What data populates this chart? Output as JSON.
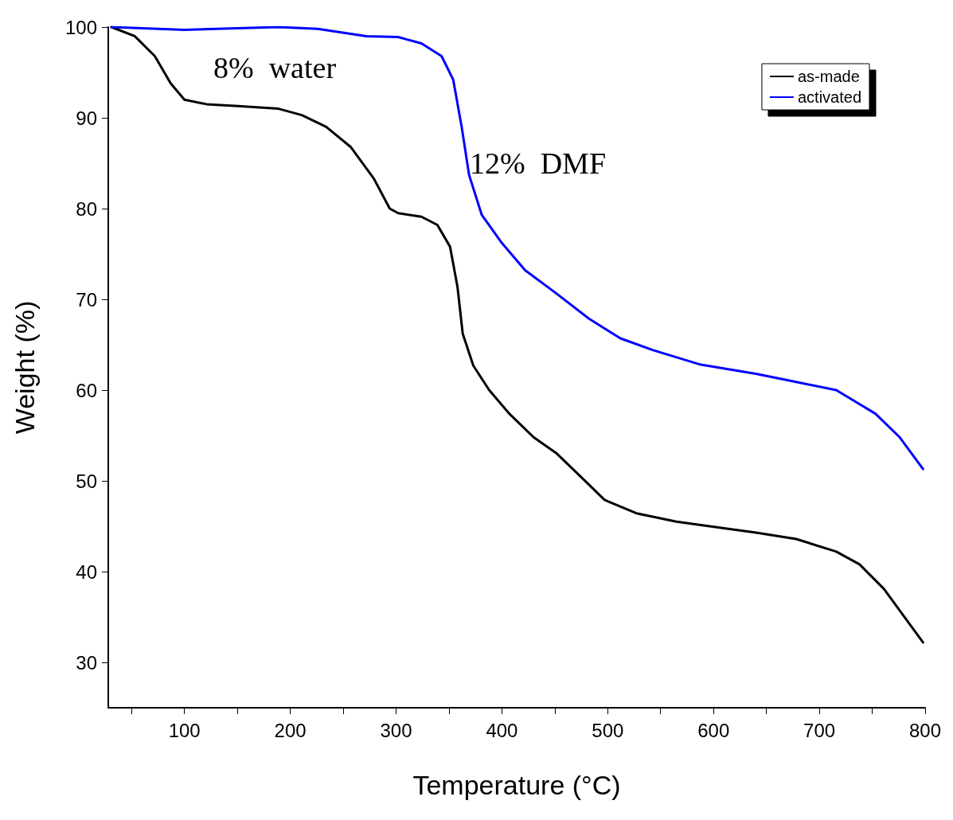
{
  "chart_data": {
    "type": "line",
    "xlabel": "Temperature (°C)",
    "ylabel": "Weight (%)",
    "xlim": [
      28,
      800
    ],
    "ylim": [
      25,
      100
    ],
    "xticks": [
      {
        "value": 50,
        "label": null
      },
      100,
      {
        "value": 150,
        "label": null
      },
      200,
      {
        "value": 250,
        "label": null
      },
      300,
      {
        "value": 350,
        "label": null
      },
      400,
      {
        "value": 450,
        "label": null
      },
      500,
      {
        "value": 550,
        "label": null
      },
      600,
      {
        "value": 650,
        "label": null
      },
      700,
      {
        "value": 750,
        "label": null
      },
      800
    ],
    "yticks": [
      30,
      40,
      50,
      60,
      70,
      80,
      90,
      100
    ],
    "grid": false,
    "legend": "top right",
    "marker": "none",
    "line_style": "solid",
    "annotations": [
      "8%  water",
      "12%  DMF"
    ],
    "series": [
      {
        "name": "as-made",
        "color": "#000000",
        "x": [
          31,
          53,
          72,
          87,
          100,
          121,
          151,
          189,
          211,
          234,
          257,
          279,
          294,
          302,
          324,
          339,
          351,
          358,
          363,
          373,
          388,
          407,
          430,
          452,
          475,
          497,
          528,
          565,
          603,
          640,
          678,
          716,
          738,
          761,
          783,
          798
        ],
        "values": [
          100,
          99,
          96.8,
          93.8,
          92,
          91.5,
          91.3,
          91,
          90.3,
          89,
          86.8,
          83.3,
          80,
          79.5,
          79.1,
          78.2,
          75.8,
          71.4,
          66.2,
          62.7,
          60,
          57.4,
          54.8,
          53,
          50.4,
          47.9,
          46.4,
          45.5,
          44.9,
          44.3,
          43.6,
          42.2,
          40.8,
          38.1,
          34.6,
          32.2
        ]
      },
      {
        "name": "activated",
        "color": "#0000ff",
        "x": [
          31,
          100,
          189,
          226,
          272,
          302,
          324,
          343,
          354,
          362,
          369,
          381,
          400,
          422,
          452,
          482,
          512,
          543,
          588,
          640,
          678,
          716,
          753,
          776,
          798
        ],
        "values": [
          100,
          99.7,
          100,
          99.8,
          99,
          98.9,
          98.2,
          96.8,
          94.2,
          89,
          83.7,
          79.3,
          76.2,
          73.2,
          70.6,
          67.9,
          65.7,
          64.4,
          62.8,
          61.8,
          60.9,
          60,
          57.4,
          54.8,
          51.3
        ]
      }
    ]
  }
}
